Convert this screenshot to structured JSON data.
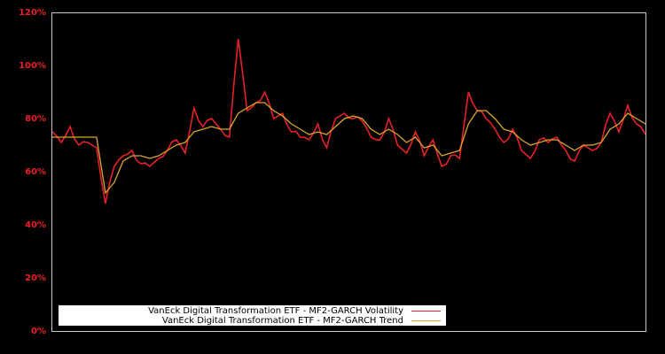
{
  "chart_data": {
    "type": "line",
    "title": "",
    "xlabel": "",
    "ylabel": "",
    "ylim": [
      0,
      120
    ],
    "y_ticks": [
      "0%",
      "20%",
      "40%",
      "60%",
      "80%",
      "100%",
      "120%"
    ],
    "y_tick_values": [
      0,
      20,
      40,
      60,
      80,
      100,
      120
    ],
    "grid": false,
    "legend_position": "lower left",
    "x": [
      0,
      1,
      2,
      3,
      4,
      5,
      6,
      7,
      8,
      9,
      10,
      11,
      12,
      13,
      14,
      15,
      16,
      17,
      18,
      19,
      20,
      21,
      22,
      23,
      24,
      25,
      26,
      27,
      28,
      29,
      30,
      31,
      32,
      33,
      34,
      35,
      36,
      37,
      38,
      39,
      40,
      41,
      42,
      43,
      44,
      45,
      46,
      47,
      48,
      49,
      50,
      51,
      52,
      53,
      54,
      55,
      56,
      57,
      58,
      59,
      60,
      61,
      62,
      63,
      64,
      65,
      66,
      67
    ],
    "series": [
      {
        "name": "VanEck Digital Transformation ETF - MF2-GARCH Volatility",
        "color": "#e8202a",
        "values": [
          75,
          71,
          77,
          70,
          71,
          69,
          48,
          62,
          66,
          68,
          63,
          62,
          65,
          68,
          72,
          67,
          84,
          77,
          80,
          76,
          73,
          110,
          83,
          86,
          90,
          80,
          82,
          75,
          73,
          72,
          78,
          69,
          80,
          82,
          80,
          79,
          73,
          72,
          80,
          70,
          67,
          75,
          66,
          72,
          62,
          66,
          65,
          90,
          83,
          80,
          76,
          71,
          76,
          68,
          65,
          72,
          71,
          73,
          68,
          64,
          70,
          68,
          71,
          82,
          75,
          85,
          78,
          74
        ]
      },
      {
        "name": "VanEck Digital Transformation ETF - MF2-GARCH Trend",
        "color": "#d9a62e",
        "values": [
          73,
          73,
          73,
          73,
          73,
          73,
          52,
          56,
          64,
          66,
          66,
          65,
          66,
          68,
          70,
          71,
          75,
          76,
          77,
          76,
          76,
          82,
          84,
          86,
          86,
          83,
          81,
          78,
          76,
          74,
          75,
          74,
          77,
          80,
          81,
          80,
          76,
          74,
          76,
          74,
          71,
          73,
          69,
          70,
          66,
          67,
          68,
          78,
          83,
          83,
          80,
          76,
          75,
          72,
          70,
          71,
          72,
          72,
          70,
          68,
          70,
          70,
          71,
          76,
          78,
          82,
          80,
          78
        ]
      }
    ]
  },
  "axis": {
    "y_labels": [
      "120%",
      "100%",
      "80%",
      "60%",
      "40%",
      "20%",
      "0%"
    ]
  },
  "legend": {
    "items": [
      {
        "label": "VanEck Digital Transformation ETF - MF2-GARCH Volatility",
        "color": "#e8202a"
      },
      {
        "label": "VanEck Digital Transformation ETF - MF2-GARCH Trend",
        "color": "#d9a62e"
      }
    ]
  },
  "colors": {
    "background": "#000000",
    "axis_frame": "#c8c8c8",
    "tick_label": "#e8202a",
    "legend_bg": "#ffffff"
  }
}
